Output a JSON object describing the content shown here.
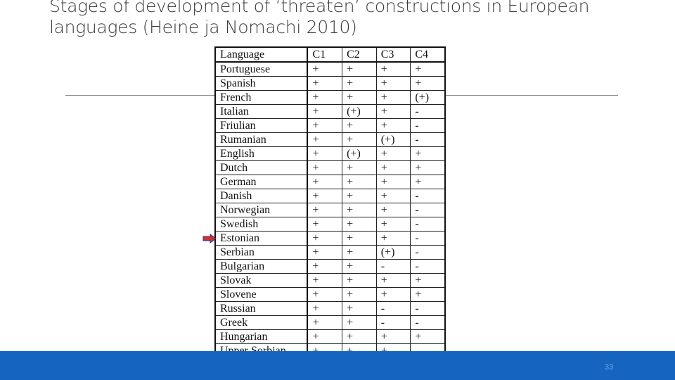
{
  "title_lines": [
    "Stages of development of ‘threaten’ constructions in European",
    "languages (Heine ja Nomachi 2010)"
  ],
  "table": {
    "headers": [
      "Language",
      "C1",
      "C2",
      "C3",
      "C4"
    ],
    "rows": [
      [
        "Portuguese",
        "+",
        "+",
        "+",
        "+"
      ],
      [
        "Spanish",
        "+",
        "+",
        "+",
        "+"
      ],
      [
        "French",
        "+",
        "+",
        "+",
        "(+)"
      ],
      [
        "Italian",
        "+",
        "(+)",
        "+",
        "-"
      ],
      [
        "Friulian",
        "+",
        "+",
        "+",
        "-"
      ],
      [
        "Rumanian",
        "+",
        "+",
        "(+)",
        "-"
      ],
      [
        "English",
        "+",
        "(+)",
        "+",
        "+"
      ],
      [
        "Dutch",
        "+",
        "+",
        "+",
        "+"
      ],
      [
        "German",
        "+",
        "+",
        "+",
        "+"
      ],
      [
        "Danish",
        "+",
        "+",
        "+",
        "-"
      ],
      [
        "Norwegian",
        "+",
        "+",
        "+",
        "-"
      ],
      [
        "Swedish",
        "+",
        "+",
        "+",
        "-"
      ],
      [
        "Estonian",
        "+",
        "+",
        "+",
        "-"
      ],
      [
        "Serbian",
        "+",
        "+",
        "(+)",
        "-"
      ],
      [
        "Bulgarian",
        "+",
        "+",
        "-",
        "-"
      ],
      [
        "Slovak",
        "+",
        "+",
        "+",
        "+"
      ],
      [
        "Slovene",
        "+",
        "+",
        "+",
        "+"
      ],
      [
        "Russian",
        "+",
        "+",
        "-",
        "-"
      ],
      [
        "Greek",
        "+",
        "+",
        "-",
        "-"
      ],
      [
        "Hungarian",
        "+",
        "+",
        "+",
        "+"
      ],
      [
        "Upper Sorbian",
        "+",
        "+",
        "+",
        ""
      ]
    ]
  },
  "marker": {
    "icon": "arrow-right-icon",
    "color": "#d32f2f",
    "outline": "#1e3a8a"
  },
  "footer": {
    "page_number": "33",
    "bar_color": "#1565c0"
  }
}
